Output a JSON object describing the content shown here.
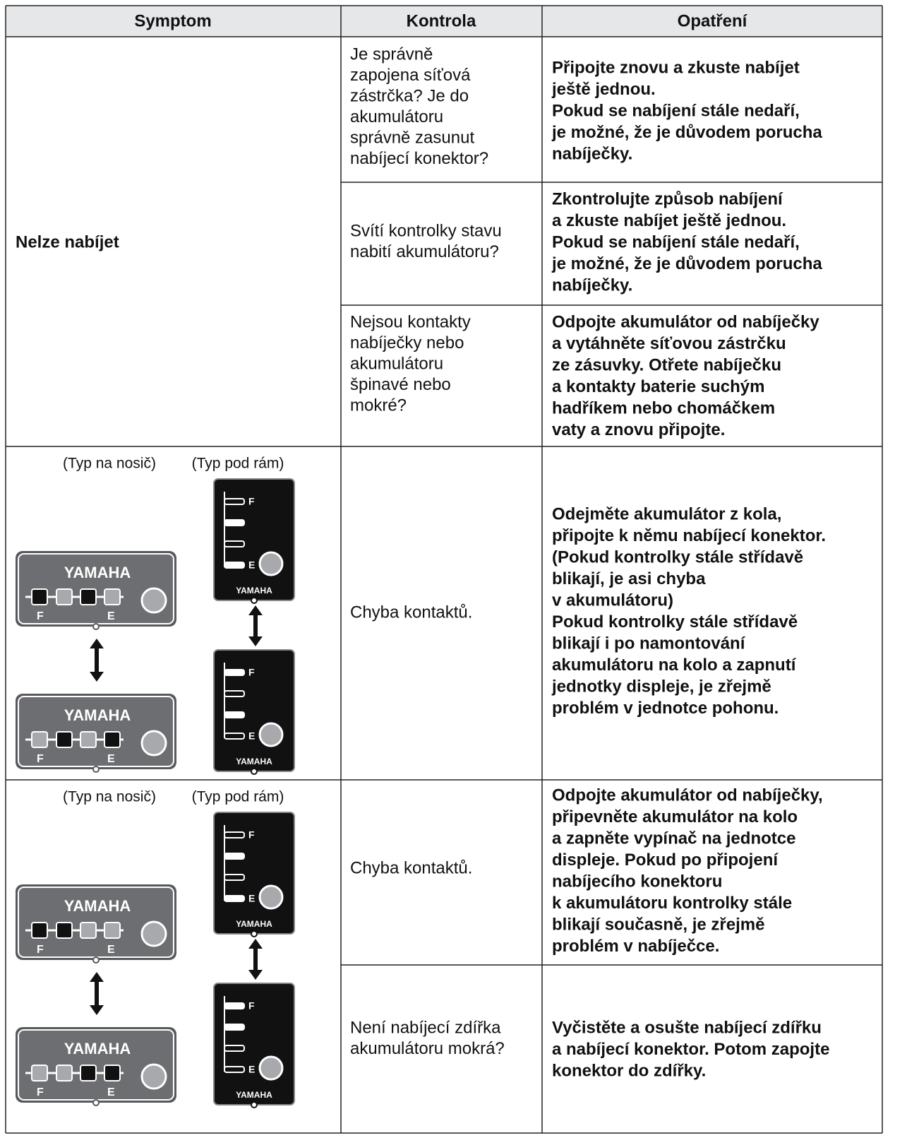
{
  "table": {
    "header": [
      "Symptom",
      "Kontrola",
      "Opatření"
    ],
    "groups": [
      {
        "symptom": "Nelze nabíjet",
        "rows": [
          {
            "kontrola": [
              "Je správně",
              "zapojena síťová",
              "zástrčka? Je do",
              "akumulátoru",
              "správně zasunut",
              "nabíjecí konektor?"
            ],
            "opatreni": [
              "Připojte znovu a zkuste nabíjet",
              "ještě jednou.",
              "Pokud se nabíjení stále nedaří,",
              "je možné, že je důvodem porucha",
              "nabíječky."
            ]
          },
          {
            "kontrola": [
              "Svítí kontrolky stavu",
              "nabití akumulátoru?"
            ],
            "opatreni": [
              "Zkontrolujte způsob nabíjení",
              "a zkuste nabíjet ještě jednou.",
              "Pokud se nabíjení stále nedaří,",
              "je možné, že je důvodem porucha",
              "nabíječky."
            ]
          },
          {
            "kontrola": [
              "Nejsou kontakty",
              "nabíječky nebo",
              "akumulátoru",
              "špinavé nebo",
              "mokré?"
            ],
            "opatreni": [
              "Odpojte akumulátor od nabíječky",
              "a vytáhněte síťovou zástrčku",
              "ze zásuvky. Otřete nabíječku",
              "a kontakty baterie suchým",
              "hadříkem nebo chomáčkem",
              "vaty a znovu připojte."
            ]
          }
        ]
      },
      {
        "illustration": {
          "carrier_label": "(Typ na nosič)",
          "frame_label": "(Typ pod rám)",
          "brand": "YAMAHA",
          "full": "F",
          "empty": "E"
        },
        "rows": [
          {
            "kontrola": [
              "Chyba kontaktů."
            ],
            "opatreni": [
              "Odejměte akumulátor z kola,",
              "připojte k němu nabíjecí konektor.",
              "(Pokud kontrolky stále střídavě",
              "blikají, je asi chyba",
              "v akumulátoru)",
              "Pokud kontrolky stále střídavě",
              "blikají i po namontování",
              "akumulátoru na kolo a zapnutí",
              "jednotky displeje, je zřejmě",
              "problém v jednotce pohonu."
            ]
          }
        ]
      },
      {
        "illustration": {
          "carrier_label": "(Typ na nosič)",
          "frame_label": "(Typ pod rám)",
          "brand": "YAMAHA",
          "full": "F",
          "empty": "E"
        },
        "rows": [
          {
            "kontrola": [
              "Chyba kontaktů."
            ],
            "opatreni": [
              "Odpojte akumulátor od nabíječky,",
              "připevněte akumulátor na kolo",
              "a zapněte vypínač na jednotce",
              "displeje. Pokud po připojení",
              "nabíjecího konektoru",
              "k akumulátoru kontrolky stále",
              "blikají současně, je zřejmě",
              "problém v nabíječce."
            ]
          },
          {
            "kontrola": [
              "Není nabíjecí zdířka",
              "akumulátoru mokrá?"
            ],
            "opatreni": [
              "Vyčistěte a osušte nabíjecí zdířku",
              "a nabíjecí konektor. Potom zapojte",
              "konektor do zdířky."
            ]
          }
        ]
      }
    ]
  }
}
